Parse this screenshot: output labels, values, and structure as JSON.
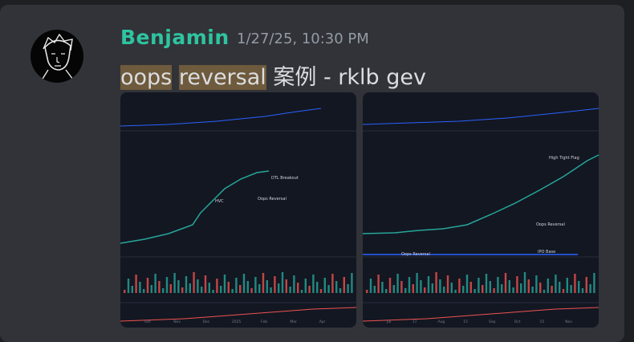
{
  "message": {
    "author": "Benjamin",
    "timestamp": "1/27/25, 10:30 PM",
    "content": [
      {
        "text": "oops",
        "highlighted": true
      },
      {
        "text": " ",
        "highlighted": false
      },
      {
        "text": "reversal",
        "highlighted": true
      },
      {
        "text": " 案例 - rklb gev",
        "highlighted": false
      }
    ],
    "attachments": [
      {
        "annotations": [
          "HVC",
          "Oops Reversal",
          "DTL Breakout"
        ],
        "axis_labels": [
          "Oct",
          "Nov",
          "Dec",
          "2025",
          "Feb",
          "Mar",
          "Apr"
        ]
      },
      {
        "annotations": [
          "High Tight Flag",
          "Oops Reversal",
          "Oops Reversal",
          "IPO Base"
        ],
        "axis_labels": [
          "Jul",
          "17",
          "Aug",
          "15",
          "Sep",
          "Oct",
          "15",
          "Nov"
        ]
      }
    ]
  }
}
